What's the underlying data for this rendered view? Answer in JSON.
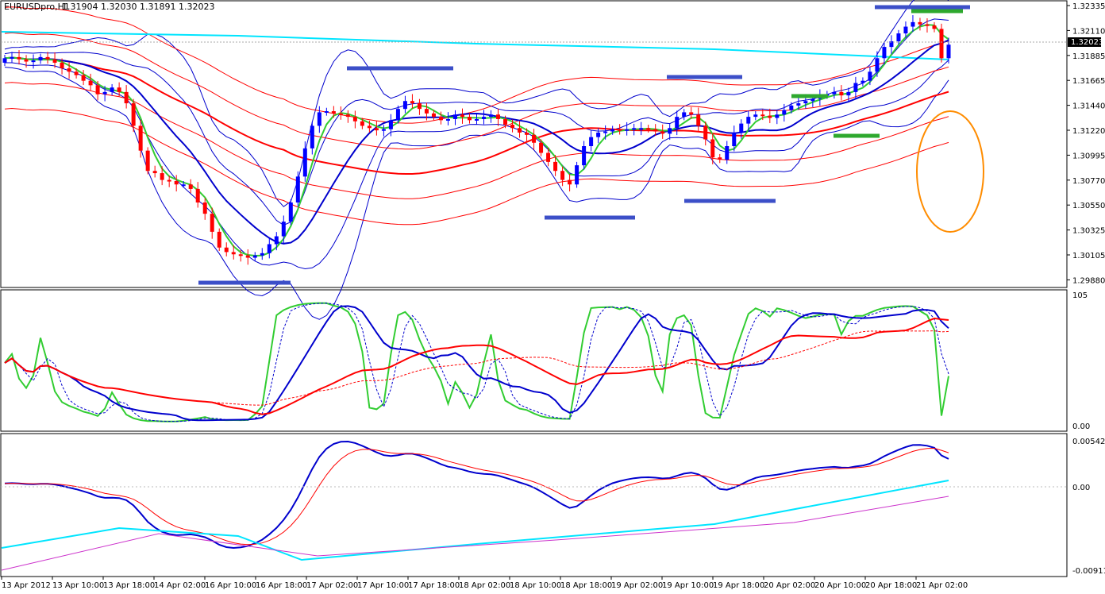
{
  "header": {
    "symbol": "EURUSDpro,H1",
    "ohlc": "1.31904 1.32030 1.31891 1.32023"
  },
  "current_price": "1.32023",
  "colors": {
    "bull": "#0000ff",
    "bear": "#ff0000",
    "green": "#32cd32",
    "navy": "#0000cd",
    "cyan": "#00e5ff",
    "magenta": "#cc33cc",
    "orange": "#ff8c00",
    "zone_blue": "#3c4fc8",
    "zone_green": "#2ea82e"
  },
  "price_axis": [
    "1.32335",
    "1.32110",
    "1.31885",
    "1.31665",
    "1.31440",
    "1.31220",
    "1.30995",
    "1.30770",
    "1.30550",
    "1.30325",
    "1.30105",
    "1.29880"
  ],
  "stoch_axis": {
    "top": "105",
    "bottom": "0.00"
  },
  "macd_axis": {
    "top": "0.00542",
    "mid": "0.00",
    "bottom": "-0.00911"
  },
  "date_axis": [
    "13 Apr 2012",
    "13 Apr 10:00",
    "13 Apr 18:00",
    "14 Apr 02:00",
    "16 Apr 10:00",
    "16 Apr 18:00",
    "17 Apr 02:00",
    "17 Apr 10:00",
    "17 Apr 18:00",
    "18 Apr 02:00",
    "18 Apr 10:00",
    "18 Apr 18:00",
    "19 Apr 02:00",
    "19 Apr 10:00",
    "19 Apr 18:00",
    "20 Apr 02:00",
    "20 Apr 10:00",
    "20 Apr 18:00",
    "21 Apr 02:00"
  ],
  "chart_data": {
    "type": "candlestick",
    "title": "EURUSDpro,H1",
    "ylim": [
      1.2988,
      1.3236
    ],
    "closes": [
      1.319,
      1.3191,
      1.3189,
      1.3187,
      1.3188,
      1.3191,
      1.3189,
      1.3186,
      1.3181,
      1.3178,
      1.3175,
      1.317,
      1.3166,
      1.3158,
      1.316,
      1.3164,
      1.316,
      1.315,
      1.313,
      1.3108,
      1.309,
      1.3088,
      1.3082,
      1.3081,
      1.3078,
      1.3078,
      1.3074,
      1.3062,
      1.3052,
      1.3036,
      1.3022,
      1.3018,
      1.3016,
      1.3015,
      1.3013,
      1.3015,
      1.3017,
      1.3025,
      1.3032,
      1.3045,
      1.3062,
      1.3085,
      1.311,
      1.313,
      1.3142,
      1.3143,
      1.3141,
      1.314,
      1.3138,
      1.3134,
      1.313,
      1.3128,
      1.3126,
      1.3127,
      1.3135,
      1.3145,
      1.3152,
      1.315,
      1.3145,
      1.3141,
      1.3138,
      1.3135,
      1.3136,
      1.314,
      1.3138,
      1.3135,
      1.3136,
      1.3138,
      1.314,
      1.3136,
      1.3131,
      1.3128,
      1.3124,
      1.3122,
      1.3115,
      1.3106,
      1.3098,
      1.309,
      1.3082,
      1.3078,
      1.3095,
      1.3112,
      1.312,
      1.3124,
      1.3125,
      1.3127,
      1.3126,
      1.3127,
      1.3128,
      1.3128,
      1.3127,
      1.3125,
      1.3123,
      1.3128,
      1.3138,
      1.3142,
      1.314,
      1.313,
      1.3118,
      1.3102,
      1.31,
      1.3112,
      1.3124,
      1.3132,
      1.3138,
      1.314,
      1.3139,
      1.3137,
      1.314,
      1.3144,
      1.3148,
      1.315,
      1.3152,
      1.3154,
      1.3157,
      1.3158,
      1.316,
      1.3157,
      1.316,
      1.3168,
      1.317,
      1.3178,
      1.319,
      1.32,
      1.3205,
      1.3212,
      1.3218,
      1.3222,
      1.322,
      1.3219,
      1.3216,
      1.319,
      1.3202
    ],
    "bands": "Bollinger / Envelopes overlays",
    "subcharts": [
      "stochastic",
      "macd"
    ]
  }
}
